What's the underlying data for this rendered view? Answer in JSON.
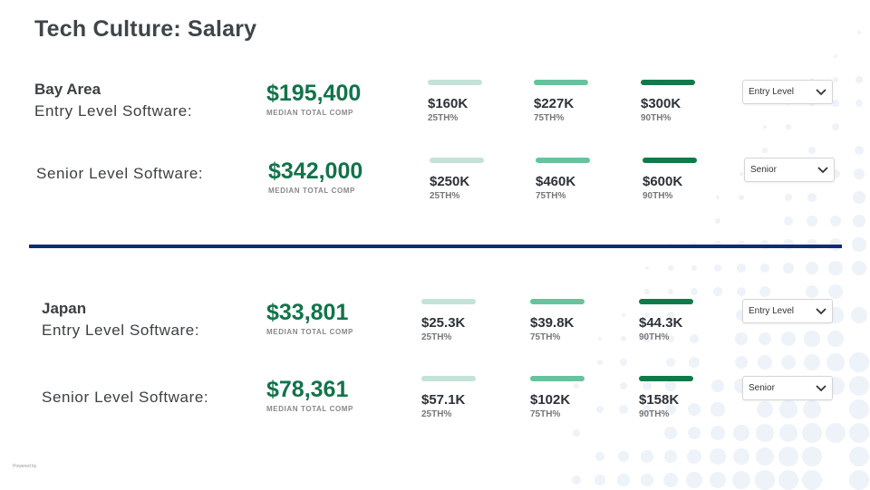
{
  "title": "Tech Culture: Salary",
  "footer_text": "Powered by",
  "sections": [
    {
      "region": "Bay Area",
      "rows": [
        {
          "level": "Entry Level Software:",
          "median": "$195,400",
          "median_label": "MEDIAN TOTAL COMP",
          "p25": {
            "value": "$160K",
            "label": "25TH%"
          },
          "p75": {
            "value": "$227K",
            "label": "75TH%"
          },
          "p90": {
            "value": "$300K",
            "label": "90TH%"
          },
          "select": "Entry Level"
        },
        {
          "level": "Senior Level Software:",
          "median": "$342,000",
          "median_label": "MEDIAN TOTAL COMP",
          "p25": {
            "value": "$250K",
            "label": "25TH%"
          },
          "p75": {
            "value": "$460K",
            "label": "75TH%"
          },
          "p90": {
            "value": "$600K",
            "label": "90TH%"
          },
          "select": "Senior"
        }
      ]
    },
    {
      "region": "Japan",
      "rows": [
        {
          "level": "Entry Level Software:",
          "median": "$33,801",
          "median_label": "MEDIAN TOTAL COMP",
          "p25": {
            "value": "$25.3K",
            "label": "25TH%"
          },
          "p75": {
            "value": "$39.8K",
            "label": "75TH%"
          },
          "p90": {
            "value": "$44.3K",
            "label": "90TH%"
          },
          "select": "Entry Level"
        },
        {
          "level": "Senior Level Software:",
          "median": "$78,361",
          "median_label": "MEDIAN TOTAL COMP",
          "p25": {
            "value": "$57.1K",
            "label": "25TH%"
          },
          "p75": {
            "value": "$102K",
            "label": "75TH%"
          },
          "p90": {
            "value": "$158K",
            "label": "90TH%"
          },
          "select": "Senior"
        }
      ]
    }
  ]
}
